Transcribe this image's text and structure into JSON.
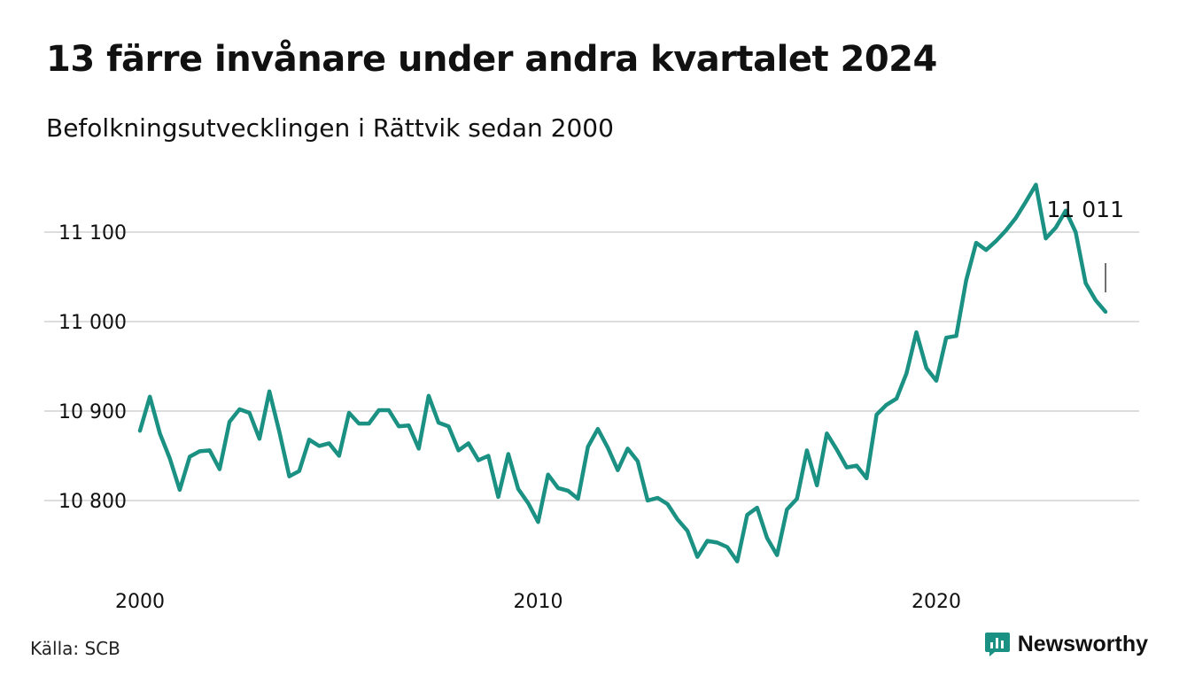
{
  "header": {
    "title": "13 färre invånare under andra kvartalet 2024",
    "subtitle": "Befolkningsutvecklingen i Rättvik sedan 2000"
  },
  "footer": {
    "source": "Källa: SCB",
    "brand": "Newsworthy"
  },
  "colors": {
    "line": "#1a9182",
    "grid": "#dddddd",
    "brand": "#1a9182"
  },
  "chart_data": {
    "type": "line",
    "x_start": "2000-Q1",
    "x_frequency": "quarterly",
    "xticks": [
      2000,
      2010,
      2020
    ],
    "ylim": [
      10725,
      11150
    ],
    "yticks": [
      {
        "value": 10800,
        "label": "10 800"
      },
      {
        "value": 10900,
        "label": "10 900"
      },
      {
        "value": 11000,
        "label": "11 000"
      },
      {
        "value": 11100,
        "label": "11 100"
      }
    ],
    "grid": true,
    "annotation": {
      "label": "11 011",
      "value": 11011
    },
    "values": [
      10878,
      10916,
      10875,
      10847,
      10812,
      10849,
      10855,
      10856,
      10835,
      10888,
      10902,
      10898,
      10869,
      10922,
      10877,
      10827,
      10833,
      10868,
      10861,
      10864,
      10850,
      10898,
      10886,
      10886,
      10901,
      10901,
      10883,
      10884,
      10858,
      10917,
      10887,
      10883,
      10856,
      10864,
      10845,
      10850,
      10804,
      10852,
      10813,
      10797,
      10776,
      10829,
      10814,
      10811,
      10802,
      10860,
      10880,
      10859,
      10834,
      10858,
      10844,
      10800,
      10803,
      10796,
      10779,
      10766,
      10737,
      10755,
      10753,
      10748,
      10732,
      10784,
      10792,
      10758,
      10739,
      10790,
      10802,
      10856,
      10817,
      10875,
      10857,
      10837,
      10839,
      10825,
      10896,
      10907,
      10914,
      10942,
      10988,
      10948,
      10934,
      10982,
      10984,
      11046,
      11088,
      11080,
      11090,
      11102,
      11116,
      11134,
      11153,
      11093,
      11105,
      11124,
      11100,
      11043,
      11024,
      11011
    ]
  }
}
